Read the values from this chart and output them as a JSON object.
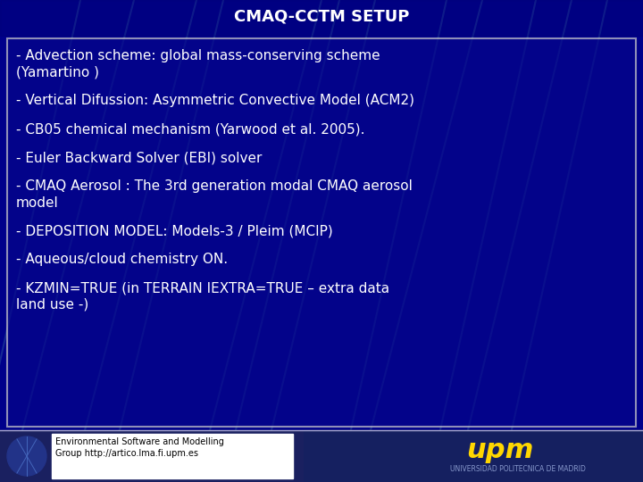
{
  "title": "CMAQ-CCTM SETUP",
  "title_color": "#ffffff",
  "title_fontsize": 13,
  "bg_color": "#00008B",
  "box_edge_color": "#cccccc",
  "text_color": "#ffffff",
  "text_fontsize": 11,
  "footer_bg": "#1a2a7a",
  "footer_left_text": "Environmental Software and Modelling\nGroup http://artico.lma.fi.upm.es",
  "bullet_lines": [
    "- Advection scheme: global mass-conserving scheme\n(Yamartino )",
    "- Vertical Difussion: Asymmetric Convective Model (ACM2)",
    "- CB05 chemical mechanism (Yarwood et al. 2005).",
    "- Euler Backward Solver (EBI) solver",
    "- CMAQ Aerosol : The 3rd generation modal CMAQ aerosol\nmodel",
    "- DEPOSITION MODEL: Models-3 / Pleim (MCIP)",
    "- Aqueous/cloud chemistry ON.",
    "- KZMIN=TRUE (in TERRAIN IEXTRA=TRUE – extra data\nland use -)"
  ],
  "line_color": "#1a3aaa",
  "line_segments": [
    [
      0.3,
      1.05,
      0.1,
      -0.1
    ],
    [
      0.35,
      1.05,
      0.15,
      -0.05
    ],
    [
      0.5,
      1.05,
      0.25,
      -0.1
    ],
    [
      0.6,
      1.0,
      0.35,
      -0.1
    ],
    [
      0.55,
      1.05,
      0.3,
      -0.1
    ],
    [
      0.7,
      1.05,
      0.45,
      -0.1
    ],
    [
      0.75,
      1.0,
      0.5,
      -0.05
    ],
    [
      0.15,
      1.0,
      -0.05,
      -0.1
    ],
    [
      0.85,
      1.0,
      0.65,
      -0.05
    ],
    [
      0.9,
      1.0,
      0.75,
      -0.1
    ],
    [
      0.95,
      0.95,
      0.8,
      -0.1
    ]
  ]
}
